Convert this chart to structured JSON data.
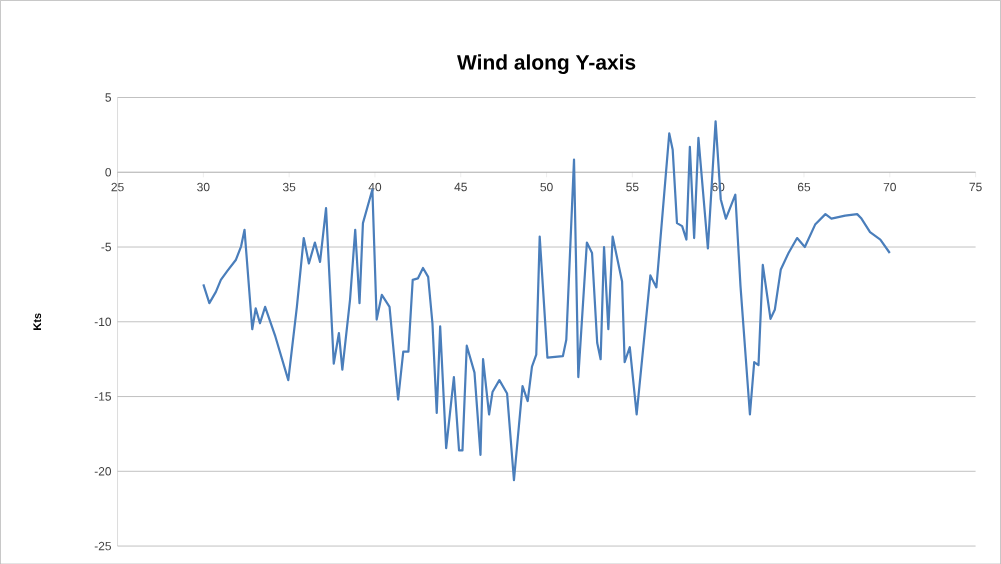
{
  "chart_data": {
    "type": "line",
    "title": "Wind along Y-axis",
    "ylabel": "Kts",
    "x": [
      30,
      30.35,
      30.73,
      31.02,
      31.4,
      31.9,
      32.2,
      32.4,
      32.85,
      33.05,
      33.3,
      33.6,
      34.2,
      34.95,
      35.45,
      35.85,
      36.15,
      36.5,
      36.8,
      37.15,
      37.6,
      37.9,
      38.1,
      38.55,
      38.85,
      39.1,
      39.3,
      39.85,
      40.1,
      40.4,
      40.85,
      41.35,
      41.65,
      41.95,
      42.2,
      42.5,
      42.8,
      43.1,
      43.35,
      43.6,
      43.8,
      44.15,
      44.6,
      44.9,
      45.1,
      45.35,
      45.8,
      46.15,
      46.3,
      46.65,
      46.85,
      47.25,
      47.7,
      48.1,
      48.6,
      48.9,
      49.15,
      49.4,
      49.6,
      50.05,
      50.95,
      51.15,
      51.6,
      51.85,
      52.35,
      52.65,
      52.95,
      53.15,
      53.35,
      53.6,
      53.85,
      54.4,
      54.55,
      54.85,
      55.25,
      56.05,
      56.4,
      57.15,
      57.35,
      57.6,
      57.9,
      58.15,
      58.35,
      58.6,
      58.85,
      59.4,
      59.85,
      60.15,
      60.45,
      61.0,
      61.3,
      61.85,
      62.1,
      62.35,
      62.6,
      63.05,
      63.3,
      63.65,
      64.1,
      64.6,
      65.05,
      65.65,
      66.25,
      66.6,
      67.4,
      68.1,
      68.35,
      68.85,
      69.45,
      70.0
    ],
    "series": [
      {
        "color": "#4a7ebb",
        "values": [
          -7.5,
          -8.75,
          -8.0,
          -7.2,
          -6.6,
          -5.85,
          -4.95,
          -3.85,
          -10.5,
          -9.1,
          -10.1,
          -9.0,
          -11.0,
          -13.9,
          -9.0,
          -4.4,
          -6.1,
          -4.7,
          -6.0,
          -2.4,
          -12.8,
          -10.75,
          -13.2,
          -8.5,
          -3.85,
          -8.75,
          -3.4,
          -1.15,
          -9.85,
          -8.2,
          -9.0,
          -15.2,
          -12.0,
          -12.0,
          -7.2,
          -7.1,
          -6.4,
          -7.0,
          -10.1,
          -16.1,
          -10.3,
          -18.45,
          -13.7,
          -18.6,
          -18.6,
          -11.6,
          -13.4,
          -18.9,
          -12.5,
          -16.2,
          -14.7,
          -13.9,
          -14.8,
          -20.6,
          -14.3,
          -15.3,
          -13.0,
          -12.2,
          -4.3,
          -12.4,
          -12.3,
          -11.2,
          0.85,
          -13.7,
          -4.7,
          -5.4,
          -11.4,
          -12.5,
          -5.0,
          -10.5,
          -4.3,
          -7.3,
          -12.7,
          -11.7,
          -16.2,
          -6.9,
          -7.7,
          2.6,
          1.5,
          -3.4,
          -3.6,
          -4.5,
          1.7,
          -4.4,
          2.3,
          -5.1,
          3.4,
          -1.8,
          -3.1,
          -1.5,
          -7.6,
          -16.2,
          -12.7,
          -12.9,
          -6.2,
          -9.8,
          -9.2,
          -6.5,
          -5.4,
          -4.4,
          -5.0,
          -3.5,
          -2.8,
          -3.1,
          -2.9,
          -2.8,
          -3.1,
          -4.0,
          -4.5,
          -5.4
        ]
      }
    ],
    "xlim": [
      25,
      75
    ],
    "ylim": [
      -25,
      5
    ],
    "xticks": [
      25,
      30,
      35,
      40,
      45,
      50,
      55,
      60,
      65,
      70,
      75
    ],
    "yticks": [
      -25,
      -20,
      -15,
      -10,
      -5,
      0,
      5
    ],
    "grid": "y"
  }
}
